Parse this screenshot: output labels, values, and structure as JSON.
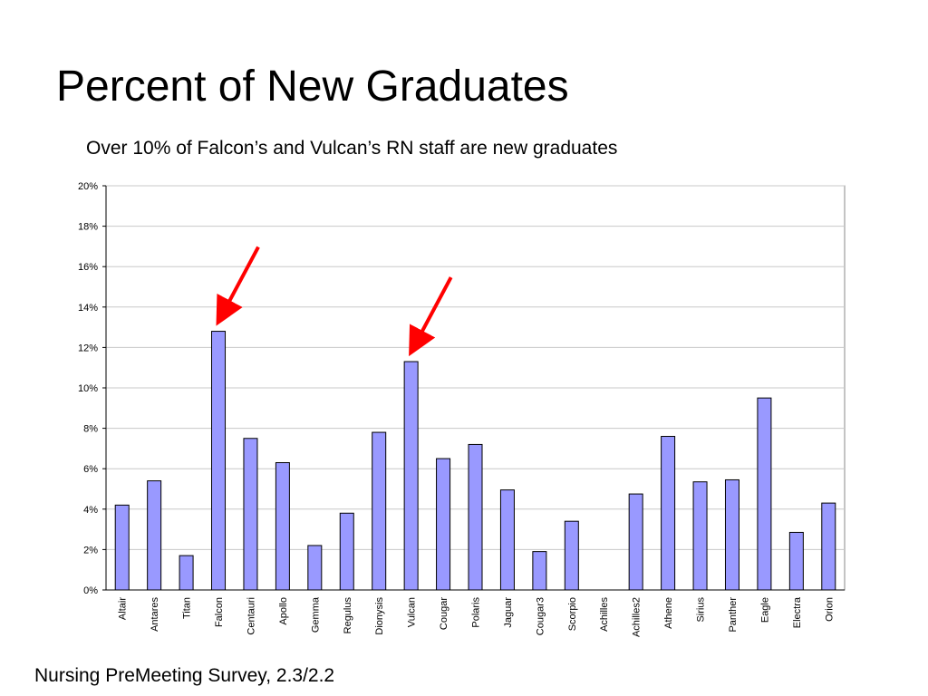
{
  "slide": {
    "title": "Percent of New Graduates",
    "subtitle": "Over 10% of Falcon’s and Vulcan’s RN staff are new graduates",
    "footer": "Nursing PreMeeting Survey, 2.3/2.2"
  },
  "chart_data": {
    "type": "bar",
    "title": "",
    "xlabel": "",
    "ylabel": "",
    "categories": [
      "Altair",
      "Antares",
      "Titan",
      "Falcon",
      "Centauri",
      "Apollo",
      "Gemma",
      "Regulus",
      "Dionysis",
      "Vulcan",
      "Cougar",
      "Polaris",
      "Jaguar",
      "Cougar3",
      "Scorpio",
      "Achilles",
      "Achilles2",
      "Athene",
      "Sirius",
      "Panther",
      "Eagle",
      "Electra",
      "Orion"
    ],
    "values": [
      4.2,
      5.4,
      1.7,
      12.8,
      7.5,
      6.3,
      2.2,
      3.8,
      7.8,
      11.3,
      6.5,
      7.2,
      4.95,
      1.9,
      3.4,
      0,
      4.75,
      7.6,
      5.35,
      5.45,
      9.5,
      2.85,
      4.3
    ],
    "ylim": [
      0,
      20
    ],
    "yticks": [
      "0%",
      "2%",
      "4%",
      "6%",
      "8%",
      "10%",
      "12%",
      "14%",
      "16%",
      "18%",
      "20%"
    ],
    "grid": true,
    "legend": "none",
    "bar_color": "#9999ff",
    "annotations": [
      {
        "type": "arrow",
        "color": "#ff0000",
        "points_to": "Falcon"
      },
      {
        "type": "arrow",
        "color": "#ff0000",
        "points_to": "Vulcan"
      }
    ]
  }
}
